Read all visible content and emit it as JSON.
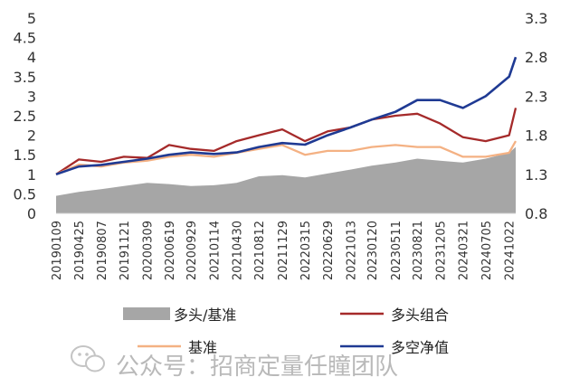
{
  "chart_data": {
    "type": "line",
    "title": "",
    "x_start": "20190109",
    "x_ticks": [
      "20190109",
      "20190425",
      "20190807",
      "20191121",
      "20200309",
      "20200619",
      "20200929",
      "20210114",
      "20210430",
      "20210812",
      "20211129",
      "20220315",
      "20220629",
      "20221013",
      "20230120",
      "20230511",
      "20230821",
      "20231205",
      "20240321",
      "20240705",
      "20241022"
    ],
    "x_end": "20241122",
    "ylim_left": [
      0,
      5
    ],
    "yticks_left": [
      "0",
      "0.5",
      "1",
      "1.5",
      "2",
      "2.5",
      "3",
      "3.5",
      "4",
      "4.5",
      "5"
    ],
    "ylim_right": [
      0.8,
      3.3
    ],
    "yticks_right": [
      "0.8",
      "1.3",
      "1.8",
      "2.3",
      "2.8",
      "3.3"
    ],
    "grid": false,
    "legend_position": "bottom",
    "series": [
      {
        "name": "多头/基准",
        "kind": "area",
        "axis": "left",
        "color": "#a6a6a6",
        "points": [
          [
            "20190109",
            0.45
          ],
          [
            "20190425",
            0.55
          ],
          [
            "20190807",
            0.62
          ],
          [
            "20191121",
            0.7
          ],
          [
            "20200309",
            0.78
          ],
          [
            "20200619",
            0.75
          ],
          [
            "20200929",
            0.7
          ],
          [
            "20210114",
            0.72
          ],
          [
            "20210430",
            0.78
          ],
          [
            "20210812",
            0.95
          ],
          [
            "20211129",
            0.98
          ],
          [
            "20220315",
            0.92
          ],
          [
            "20220629",
            1.02
          ],
          [
            "20221013",
            1.12
          ],
          [
            "20230120",
            1.22
          ],
          [
            "20230511",
            1.3
          ],
          [
            "20230821",
            1.4
          ],
          [
            "20231205",
            1.35
          ],
          [
            "20240321",
            1.3
          ],
          [
            "20240705",
            1.4
          ],
          [
            "20241022",
            1.55
          ],
          [
            "20241122",
            1.7
          ]
        ]
      },
      {
        "name": "多头组合",
        "kind": "line",
        "axis": "left",
        "color": "#a52a2a",
        "points": [
          [
            "20190109",
            1.0
          ],
          [
            "20190425",
            1.38
          ],
          [
            "20190807",
            1.32
          ],
          [
            "20191121",
            1.45
          ],
          [
            "20200309",
            1.42
          ],
          [
            "20200619",
            1.75
          ],
          [
            "20200929",
            1.65
          ],
          [
            "20210114",
            1.6
          ],
          [
            "20210430",
            1.85
          ],
          [
            "20210812",
            2.0
          ],
          [
            "20211129",
            2.15
          ],
          [
            "20220315",
            1.85
          ],
          [
            "20220629",
            2.1
          ],
          [
            "20221013",
            2.2
          ],
          [
            "20230120",
            2.4
          ],
          [
            "20230511",
            2.5
          ],
          [
            "20230821",
            2.55
          ],
          [
            "20231205",
            2.3
          ],
          [
            "20240321",
            1.95
          ],
          [
            "20240705",
            1.85
          ],
          [
            "20241022",
            2.0
          ],
          [
            "20241122",
            2.7
          ]
        ]
      },
      {
        "name": "基准",
        "kind": "line",
        "axis": "left",
        "color": "#f4b183",
        "points": [
          [
            "20190109",
            1.0
          ],
          [
            "20190425",
            1.25
          ],
          [
            "20190807",
            1.2
          ],
          [
            "20191121",
            1.3
          ],
          [
            "20200309",
            1.35
          ],
          [
            "20200619",
            1.45
          ],
          [
            "20200929",
            1.5
          ],
          [
            "20210114",
            1.45
          ],
          [
            "20210430",
            1.55
          ],
          [
            "20210812",
            1.65
          ],
          [
            "20211129",
            1.75
          ],
          [
            "20220315",
            1.5
          ],
          [
            "20220629",
            1.6
          ],
          [
            "20221013",
            1.6
          ],
          [
            "20230120",
            1.7
          ],
          [
            "20230511",
            1.75
          ],
          [
            "20230821",
            1.7
          ],
          [
            "20231205",
            1.7
          ],
          [
            "20240321",
            1.45
          ],
          [
            "20240705",
            1.45
          ],
          [
            "20241022",
            1.55
          ],
          [
            "20241122",
            1.85
          ]
        ]
      },
      {
        "name": "多空净值",
        "kind": "line",
        "axis": "right",
        "color": "#1f3a93",
        "points": [
          [
            "20190109",
            1.3
          ],
          [
            "20190425",
            1.4
          ],
          [
            "20190807",
            1.42
          ],
          [
            "20191121",
            1.46
          ],
          [
            "20200309",
            1.5
          ],
          [
            "20200619",
            1.55
          ],
          [
            "20200929",
            1.58
          ],
          [
            "20210114",
            1.56
          ],
          [
            "20210430",
            1.58
          ],
          [
            "20210812",
            1.65
          ],
          [
            "20211129",
            1.7
          ],
          [
            "20220315",
            1.68
          ],
          [
            "20220629",
            1.8
          ],
          [
            "20221013",
            1.9
          ],
          [
            "20230120",
            2.0
          ],
          [
            "20230511",
            2.1
          ],
          [
            "20230821",
            2.25
          ],
          [
            "20231205",
            2.25
          ],
          [
            "20240321",
            2.15
          ],
          [
            "20240705",
            2.3
          ],
          [
            "20241022",
            2.55
          ],
          [
            "20241122",
            2.8
          ]
        ]
      }
    ]
  },
  "watermark": {
    "text": "公众号：招商定量任瞳团队",
    "icon": "wechat-icon"
  }
}
